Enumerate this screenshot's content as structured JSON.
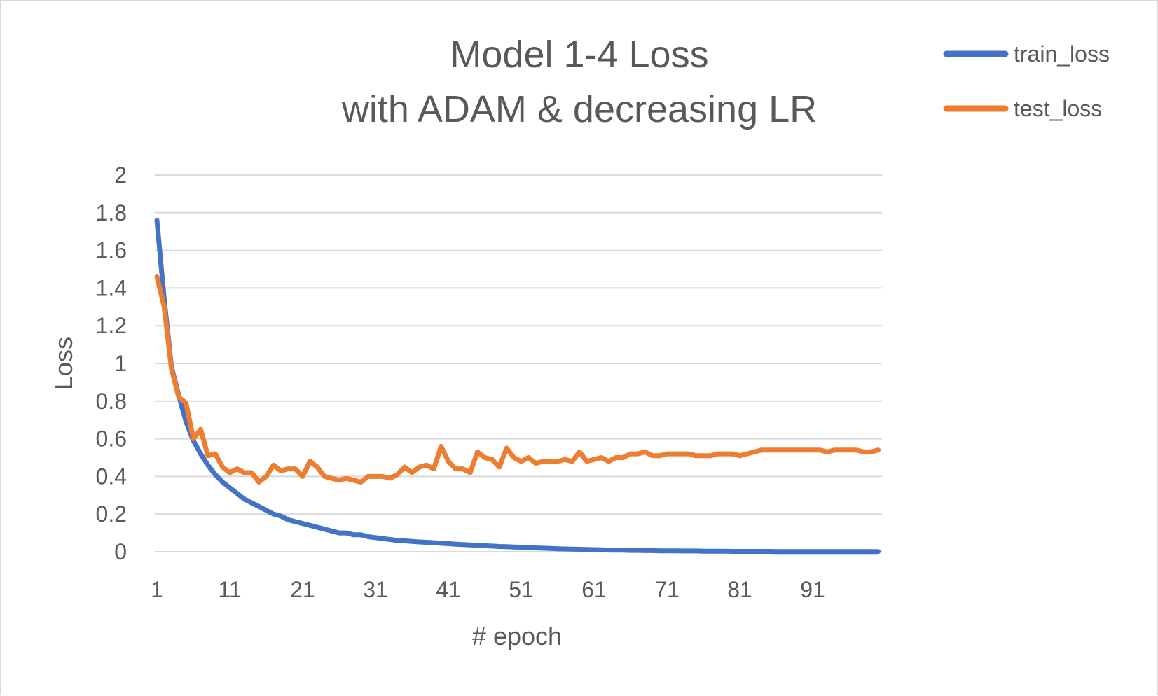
{
  "chart_data": {
    "type": "line",
    "title": [
      "Model 1-4 Loss",
      "with ADAM & decreasing LR"
    ],
    "xlabel": "# epoch",
    "ylabel": "Loss",
    "xlim": [
      1,
      100
    ],
    "ylim": [
      0,
      2
    ],
    "x_tick_labels": [
      "1",
      "11",
      "21",
      "31",
      "41",
      "51",
      "61",
      "71",
      "81",
      "91"
    ],
    "y_tick_labels": [
      "0",
      "0.2",
      "0.4",
      "0.6",
      "0.8",
      "1",
      "1.2",
      "1.4",
      "1.6",
      "1.8",
      "2"
    ],
    "grid": true,
    "legend": "top-right",
    "series": [
      {
        "name": "train_loss",
        "color": "#4472c4",
        "values": [
          1.76,
          1.34,
          0.98,
          0.83,
          0.69,
          0.59,
          0.52,
          0.46,
          0.41,
          0.37,
          0.34,
          0.31,
          0.28,
          0.26,
          0.24,
          0.22,
          0.2,
          0.19,
          0.17,
          0.16,
          0.15,
          0.14,
          0.13,
          0.12,
          0.11,
          0.1,
          0.1,
          0.09,
          0.09,
          0.08,
          0.075,
          0.07,
          0.065,
          0.06,
          0.058,
          0.055,
          0.052,
          0.05,
          0.048,
          0.045,
          0.043,
          0.04,
          0.038,
          0.036,
          0.034,
          0.032,
          0.03,
          0.028,
          0.027,
          0.025,
          0.024,
          0.022,
          0.02,
          0.019,
          0.018,
          0.016,
          0.015,
          0.014,
          0.013,
          0.012,
          0.011,
          0.01,
          0.009,
          0.008,
          0.008,
          0.007,
          0.007,
          0.006,
          0.006,
          0.005,
          0.005,
          0.005,
          0.004,
          0.004,
          0.004,
          0.003,
          0.003,
          0.003,
          0.003,
          0.002,
          0.002,
          0.002,
          0.002,
          0.002,
          0.002,
          0.001,
          0.001,
          0.001,
          0.001,
          0.001,
          0.001,
          0.001,
          0.001,
          0.001,
          0.001,
          0.001,
          0.001,
          0.001,
          0.001,
          0.001
        ]
      },
      {
        "name": "test_loss",
        "color": "#ed7d31",
        "values": [
          1.46,
          1.3,
          0.97,
          0.82,
          0.79,
          0.6,
          0.65,
          0.51,
          0.52,
          0.45,
          0.42,
          0.44,
          0.42,
          0.42,
          0.37,
          0.4,
          0.46,
          0.43,
          0.44,
          0.44,
          0.4,
          0.48,
          0.45,
          0.4,
          0.39,
          0.38,
          0.39,
          0.38,
          0.37,
          0.4,
          0.4,
          0.4,
          0.39,
          0.41,
          0.45,
          0.42,
          0.45,
          0.46,
          0.44,
          0.56,
          0.48,
          0.44,
          0.44,
          0.42,
          0.53,
          0.5,
          0.49,
          0.45,
          0.55,
          0.5,
          0.48,
          0.5,
          0.47,
          0.48,
          0.48,
          0.48,
          0.49,
          0.48,
          0.53,
          0.48,
          0.49,
          0.5,
          0.48,
          0.5,
          0.5,
          0.52,
          0.52,
          0.53,
          0.51,
          0.51,
          0.52,
          0.52,
          0.52,
          0.52,
          0.51,
          0.51,
          0.51,
          0.52,
          0.52,
          0.52,
          0.51,
          0.52,
          0.53,
          0.54,
          0.54,
          0.54,
          0.54,
          0.54,
          0.54,
          0.54,
          0.54,
          0.54,
          0.53,
          0.54,
          0.54,
          0.54,
          0.54,
          0.53,
          0.53,
          0.54
        ]
      }
    ]
  }
}
